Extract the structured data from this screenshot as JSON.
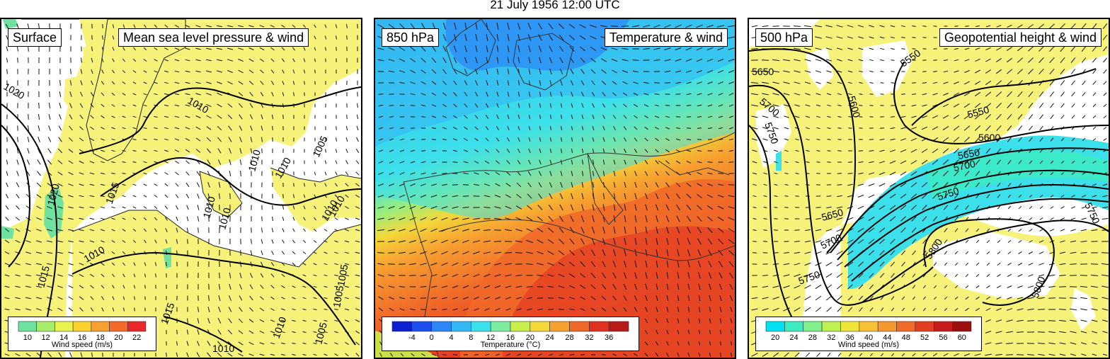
{
  "title": "21 July 1956 12:00 UTC",
  "panels": [
    {
      "level": "Surface",
      "field": "Mean sea level pressure & wind",
      "legend": {
        "title": "Wind speed (m/s)",
        "ticks": [
          "10",
          "12",
          "14",
          "16",
          "18",
          "20",
          "22"
        ],
        "colors": [
          "#6ee29e",
          "#a8ec6c",
          "#eaf250",
          "#fbd230",
          "#f8a030",
          "#f46a28",
          "#e8282a"
        ]
      },
      "contour_labels": [
        "1020",
        "1010",
        "1015",
        "1005",
        "1010",
        "1010",
        "1020",
        "1015",
        "1010",
        "1010",
        "1015",
        "1010",
        "1010",
        "1005",
        "1010",
        "1005",
        "1010",
        "1005",
        "1010"
      ],
      "colors": {
        "land": "#f6f27a",
        "sea": "#ffffff",
        "jet": "#6ee29e"
      }
    },
    {
      "level": "850 hPa",
      "field": "Temperature & wind",
      "legend": {
        "title": "Temperature (°C)",
        "ticks": [
          "-4",
          "0",
          "4",
          "8",
          "12",
          "16",
          "20",
          "24",
          "28",
          "32",
          "36"
        ],
        "colors": [
          "#0b1fd1",
          "#1e4ef0",
          "#2c86f6",
          "#34b8f4",
          "#3ce0ea",
          "#7cec9e",
          "#c8ee4c",
          "#f4d83a",
          "#f6a030",
          "#f06828",
          "#e03020",
          "#b81a18"
        ]
      },
      "colors": {
        "cold": "#2c86f6",
        "cool": "#3ce0ea",
        "warm": "#f6a030",
        "hot": "#e03020"
      }
    },
    {
      "level": "500 hPa",
      "field": "Geopotential height & wind",
      "legend": {
        "title": "Wind speed (m/s)",
        "ticks": [
          "20",
          "24",
          "28",
          "32",
          "36",
          "40",
          "44",
          "48",
          "52",
          "56",
          "60"
        ],
        "colors": [
          "#00e2f2",
          "#3cecc0",
          "#80f08a",
          "#bef250",
          "#eee63a",
          "#f8c034",
          "#f69830",
          "#f06c28",
          "#e43e22",
          "#c81c1c",
          "#9a1010"
        ]
      },
      "contour_labels": [
        "5550",
        "5650",
        "5600",
        "5700",
        "5550",
        "5750",
        "5600",
        "5650",
        "5700",
        "5750",
        "5650",
        "5700",
        "5750",
        "5800",
        "5800",
        "5750"
      ],
      "colors": {
        "land": "#f6f27a",
        "sea": "#ffffff",
        "jet": "#3ce0ea"
      }
    }
  ]
}
